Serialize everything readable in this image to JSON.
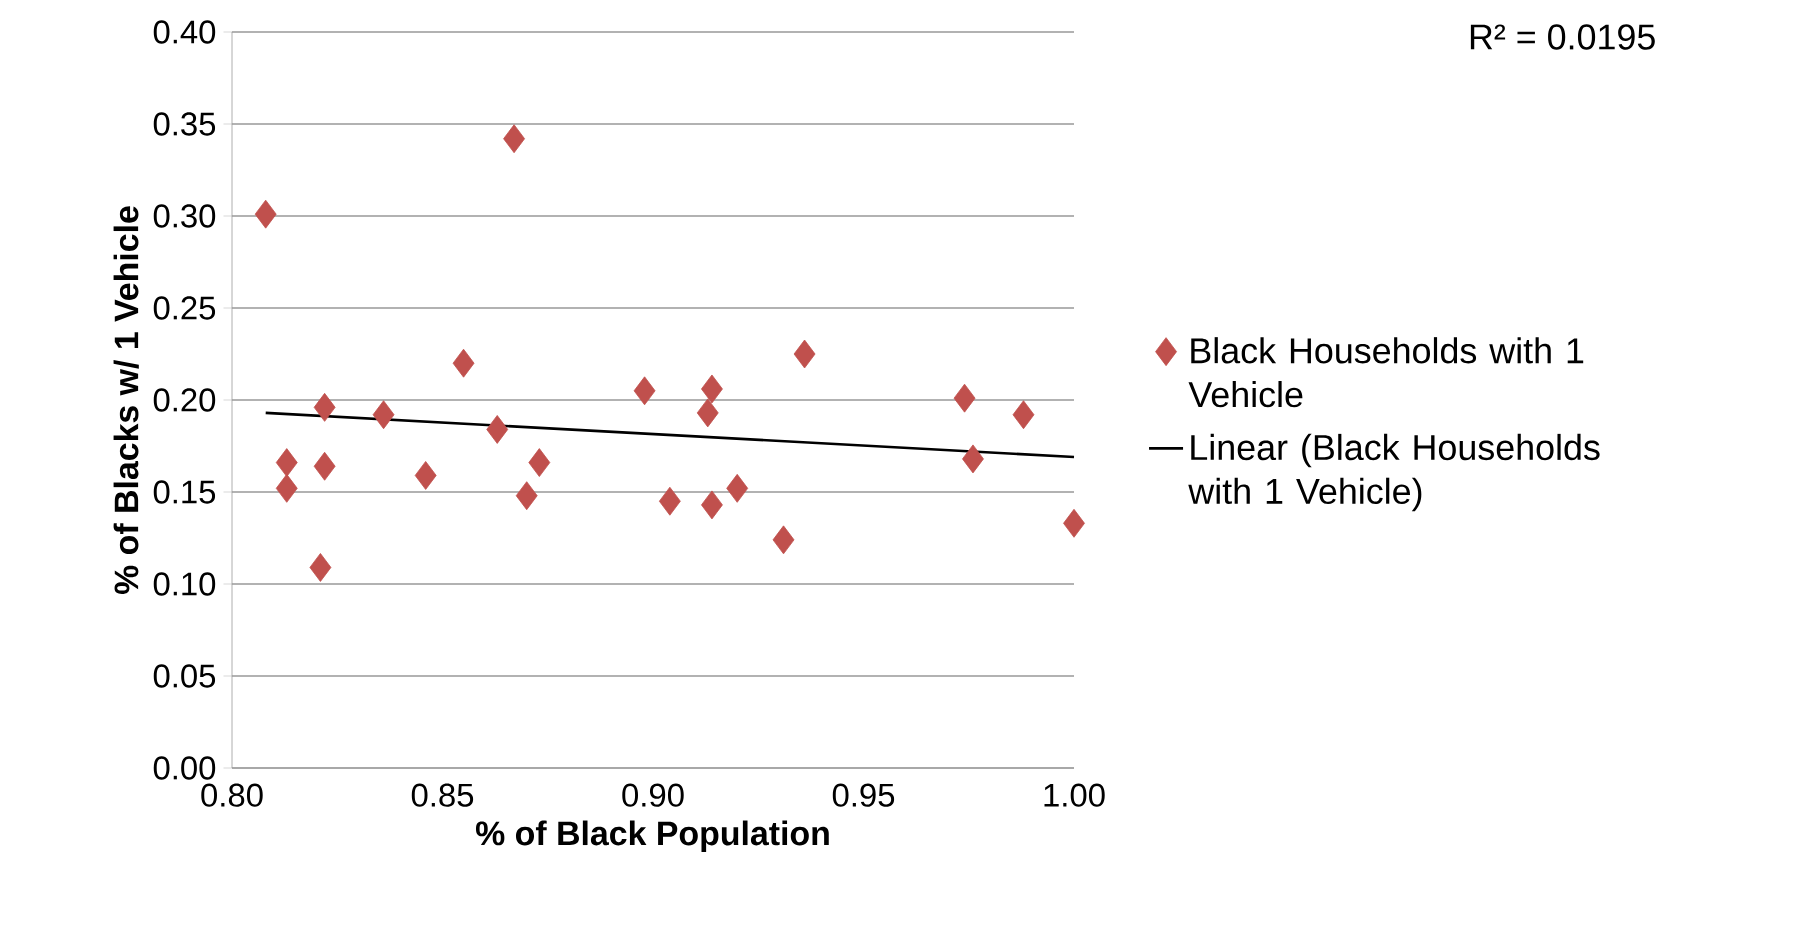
{
  "chart_data": {
    "type": "scatter",
    "xlabel": "% of Black Population",
    "ylabel": "% of Blacks w/ 1 Vehicle",
    "annotations": [
      "R² = 0.0195"
    ],
    "xlim": [
      0.8,
      1.0
    ],
    "ylim": [
      0.0,
      0.4
    ],
    "xticks": [
      {
        "value": 0.8,
        "label": "0.80"
      },
      {
        "value": 0.85,
        "label": "0.85"
      },
      {
        "value": 0.9,
        "label": "0.90"
      },
      {
        "value": 0.95,
        "label": "0.95"
      },
      {
        "value": 1.0,
        "label": "1.00"
      }
    ],
    "yticks": [
      {
        "value": 0.0,
        "label": "0.00"
      },
      {
        "value": 0.05,
        "label": "0.05"
      },
      {
        "value": 0.1,
        "label": "0.10"
      },
      {
        "value": 0.15,
        "label": "0.15"
      },
      {
        "value": 0.2,
        "label": "0.20"
      },
      {
        "value": 0.25,
        "label": "0.25"
      },
      {
        "value": 0.3,
        "label": "0.30"
      },
      {
        "value": 0.35,
        "label": "0.35"
      },
      {
        "value": 0.4,
        "label": "0.40"
      }
    ],
    "grid": "y",
    "legend": "right",
    "series": [
      {
        "name": "Black Households with 1 Vehicle",
        "marker": "diamond",
        "color": "#c0504d",
        "x": [
          0.808,
          0.867,
          0.813,
          0.813,
          0.822,
          0.822,
          0.821,
          0.836,
          0.846,
          0.855,
          0.863,
          0.87,
          0.873,
          0.898,
          0.904,
          0.914,
          0.913,
          0.914,
          0.92,
          0.931,
          0.936,
          0.974,
          0.976,
          0.988,
          1.0
        ],
        "values": [
          0.301,
          0.342,
          0.166,
          0.152,
          0.196,
          0.164,
          0.109,
          0.192,
          0.159,
          0.22,
          0.184,
          0.148,
          0.166,
          0.205,
          0.145,
          0.206,
          0.193,
          0.143,
          0.152,
          0.124,
          0.225,
          0.201,
          0.168,
          0.192,
          0.133
        ]
      },
      {
        "name": "Linear (Black Households with 1 Vehicle)",
        "type": "line",
        "marker": "none",
        "line_style": "solid",
        "color": "#000000",
        "x": [
          0.808,
          1.0
        ],
        "values": [
          0.193,
          0.169
        ]
      }
    ]
  }
}
